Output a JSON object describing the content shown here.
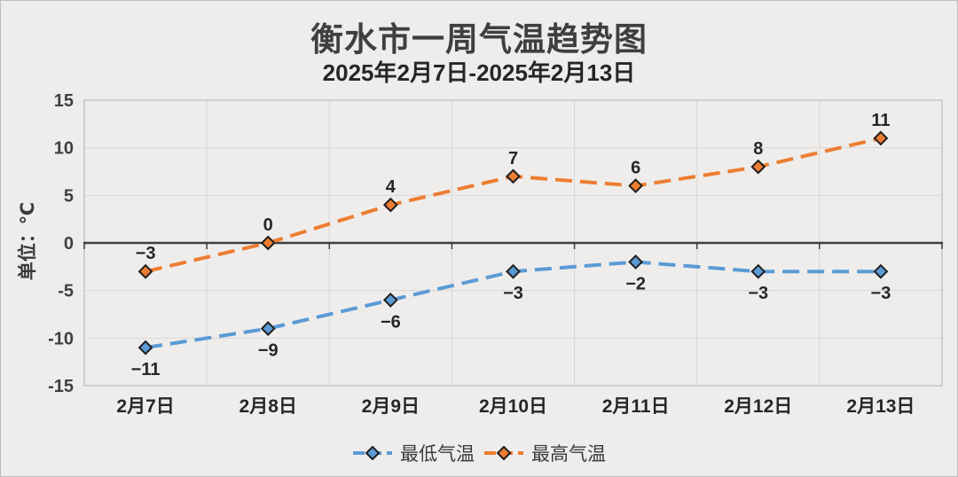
{
  "title": "衡水市一周气温趋势图",
  "subtitle": "2025年2月7日-2025年2月13日",
  "y_axis_title": "单位：℃",
  "colors": {
    "background": "#eeedec",
    "gridline": "#d8d7d5",
    "plot_border": "#c6c5c3",
    "zero_axis": "#3f3f3f",
    "text_dark": "#262626",
    "tick_label": "#3f3f3f",
    "series_low": "#5b9bd5",
    "series_high": "#ed7d31",
    "marker_outline": "#1f1f1f"
  },
  "chart_data": {
    "type": "line",
    "title": "衡水市一周气温趋势图",
    "subtitle": "2025年2月7日-2025年2月13日",
    "ylabel": "单位：℃",
    "xlabel": "",
    "categories": [
      "2月7日",
      "2月8日",
      "2月9日",
      "2月10日",
      "2月11日",
      "2月12日",
      "2月13日"
    ],
    "series": [
      {
        "name": "最低气温",
        "values": [
          -11,
          -9,
          -6,
          -3,
          -2,
          -3,
          -3
        ],
        "labels": [
          "−11",
          "−9",
          "−6",
          "−3",
          "−2",
          "−3",
          "−3"
        ],
        "color": "#5b9bd5",
        "line_style": "dashed",
        "marker": "diamond",
        "label_position": "below"
      },
      {
        "name": "最高气温",
        "values": [
          -3,
          0,
          4,
          7,
          6,
          8,
          11
        ],
        "labels": [
          "−3",
          "0",
          "4",
          "7",
          "6",
          "8",
          "11"
        ],
        "color": "#ed7d31",
        "line_style": "dashed",
        "marker": "diamond",
        "label_position": "above"
      }
    ],
    "ylim": [
      -15,
      15
    ],
    "y_ticks": [
      15,
      10,
      5,
      0,
      -5,
      -10,
      -15
    ],
    "grid": true,
    "legend_position": "bottom"
  }
}
